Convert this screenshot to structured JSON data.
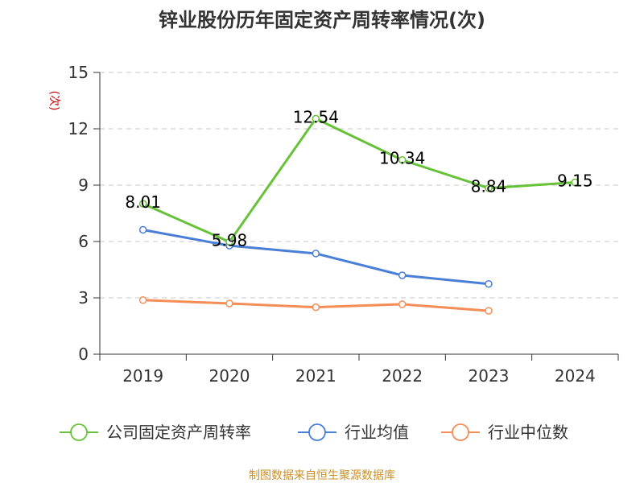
{
  "colors": {
    "company": "#67c23a",
    "industry_avg": "#4a7fd8",
    "industry_median": "#f58d56",
    "axis": "#333333",
    "grid": "#c8c8c8",
    "ylabel": "#cc0000",
    "source": "#c8902a"
  },
  "chart_data": {
    "type": "line",
    "title": "锌业股份历年固定资产周转率情况(次)",
    "ylabel": "(次)",
    "xlabel": "",
    "categories": [
      "2019",
      "2020",
      "2021",
      "2022",
      "2023",
      "2024"
    ],
    "ylim": [
      0,
      15
    ],
    "yticks": [
      0,
      3,
      6,
      9,
      12,
      15
    ],
    "grid": true,
    "legend_position": "bottom",
    "series": [
      {
        "name": "公司固定资产周转率",
        "values": [
          8.01,
          5.98,
          12.54,
          10.34,
          8.84,
          9.15
        ],
        "data_labels": [
          "8.01",
          "5.98",
          "12.54",
          "10.34",
          "8.84",
          "9.15"
        ]
      },
      {
        "name": "行业均值",
        "values": [
          6.62,
          5.78,
          5.36,
          4.2,
          3.74,
          null
        ]
      },
      {
        "name": "行业中位数",
        "values": [
          2.88,
          2.7,
          2.5,
          2.66,
          2.31,
          null
        ]
      }
    ]
  },
  "source": "制图数据来自恒生聚源数据库"
}
